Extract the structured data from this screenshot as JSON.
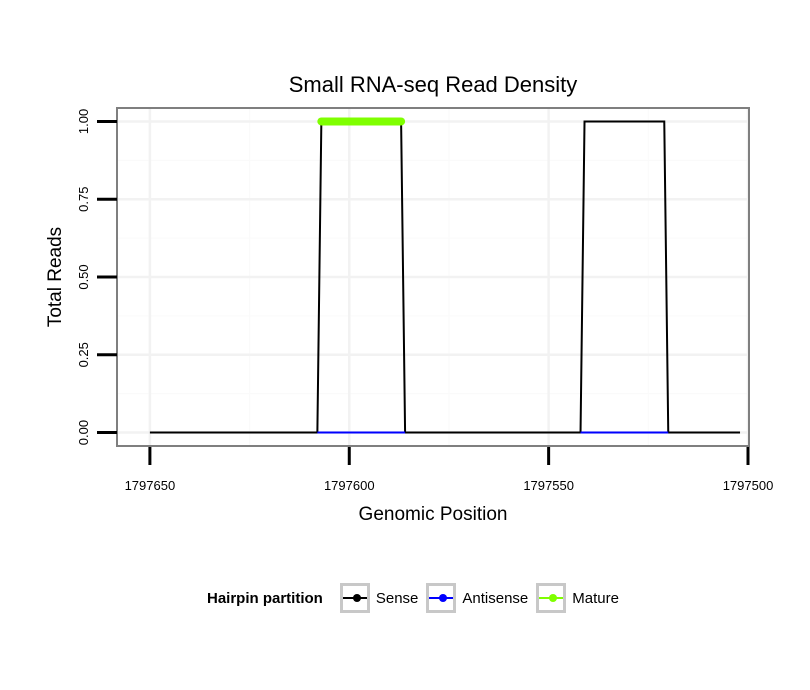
{
  "chart_data": {
    "type": "line",
    "title": "Small RNA-seq Read Density",
    "xlabel": "Genomic Position",
    "ylabel": "Total Reads",
    "x_reversed": true,
    "xlim": [
      1797658,
      1797500
    ],
    "ylim": [
      -0.04,
      1.04
    ],
    "x_ticks": [
      1797650,
      1797600,
      1797550,
      1797500
    ],
    "x_tick_labels": [
      "1797650",
      "1797600",
      "1797550",
      "1797500"
    ],
    "y_ticks": [
      0,
      0.25,
      0.5,
      0.75,
      1.0
    ],
    "y_tick_labels": [
      "0.00",
      "0.25",
      "0.50",
      "0.75",
      "1.00"
    ],
    "grid": true,
    "series": [
      {
        "name": "Sense",
        "color": "#000000",
        "x": [
          1797650,
          1797608,
          1797607,
          1797587,
          1797586,
          1797542,
          1797541,
          1797521,
          1797520,
          1797502
        ],
        "y": [
          0,
          0,
          1,
          1,
          0,
          0,
          1,
          1,
          0,
          0
        ]
      },
      {
        "name": "Antisense",
        "color": "#0000ff",
        "x": [
          1797608,
          1797586
        ],
        "y": [
          0,
          0
        ],
        "x2": [
          1797542,
          1797520
        ],
        "y2": [
          0,
          0
        ]
      },
      {
        "name": "Mature",
        "color": "#7fff00",
        "x": [
          1797607,
          1797587
        ],
        "y": [
          1,
          1
        ]
      }
    ]
  },
  "legend": {
    "title": "Hairpin partition",
    "placement": "bottom",
    "items": [
      {
        "label": "Sense",
        "color": "#000000"
      },
      {
        "label": "Antisense",
        "color": "#0000ff"
      },
      {
        "label": "Mature",
        "color": "#7fff00"
      }
    ]
  }
}
